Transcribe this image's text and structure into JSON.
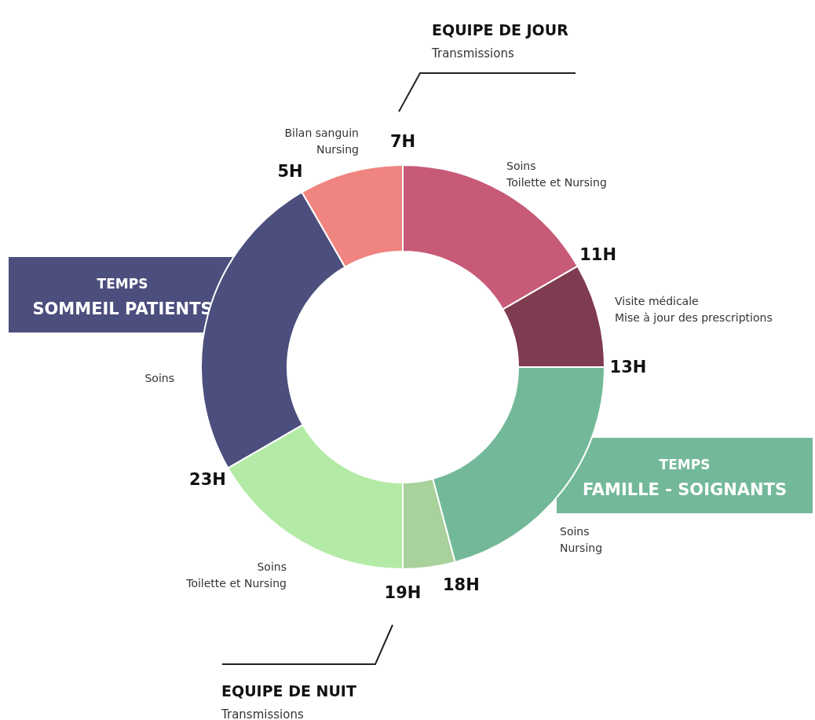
{
  "chart_data": {
    "type": "donut",
    "categories": [
      "Soins\nToilette et Nursing",
      "Visite médicale\nMise à jour des prescriptions",
      "Soins\nNursing",
      null,
      "Soins\nToilette et Nursing",
      "Soins",
      "Bilan sanguin\nNursing"
    ],
    "values": [
      16.67,
      8.33,
      20.83,
      4.17,
      16.67,
      25,
      8.33
    ],
    "colors": [
      "#c75a77",
      "#7f3b4f",
      "#73b999",
      "#a9d19b",
      "#b3eba6",
      "#4c4f7d",
      "#f08480"
    ],
    "annotations": [
      "7H",
      "11H",
      "13H",
      "18H",
      "19H",
      "23H",
      "5H",
      "TEMPS\nSOMMEIL PATIENTS",
      "TEMPS\nFAMILLE - SOIGNANTS",
      "EQUIPE DE JOUR\nTransmissions",
      "EQUIPE DE NUIT\nTransmissions"
    ],
    "legend": false
  }
}
